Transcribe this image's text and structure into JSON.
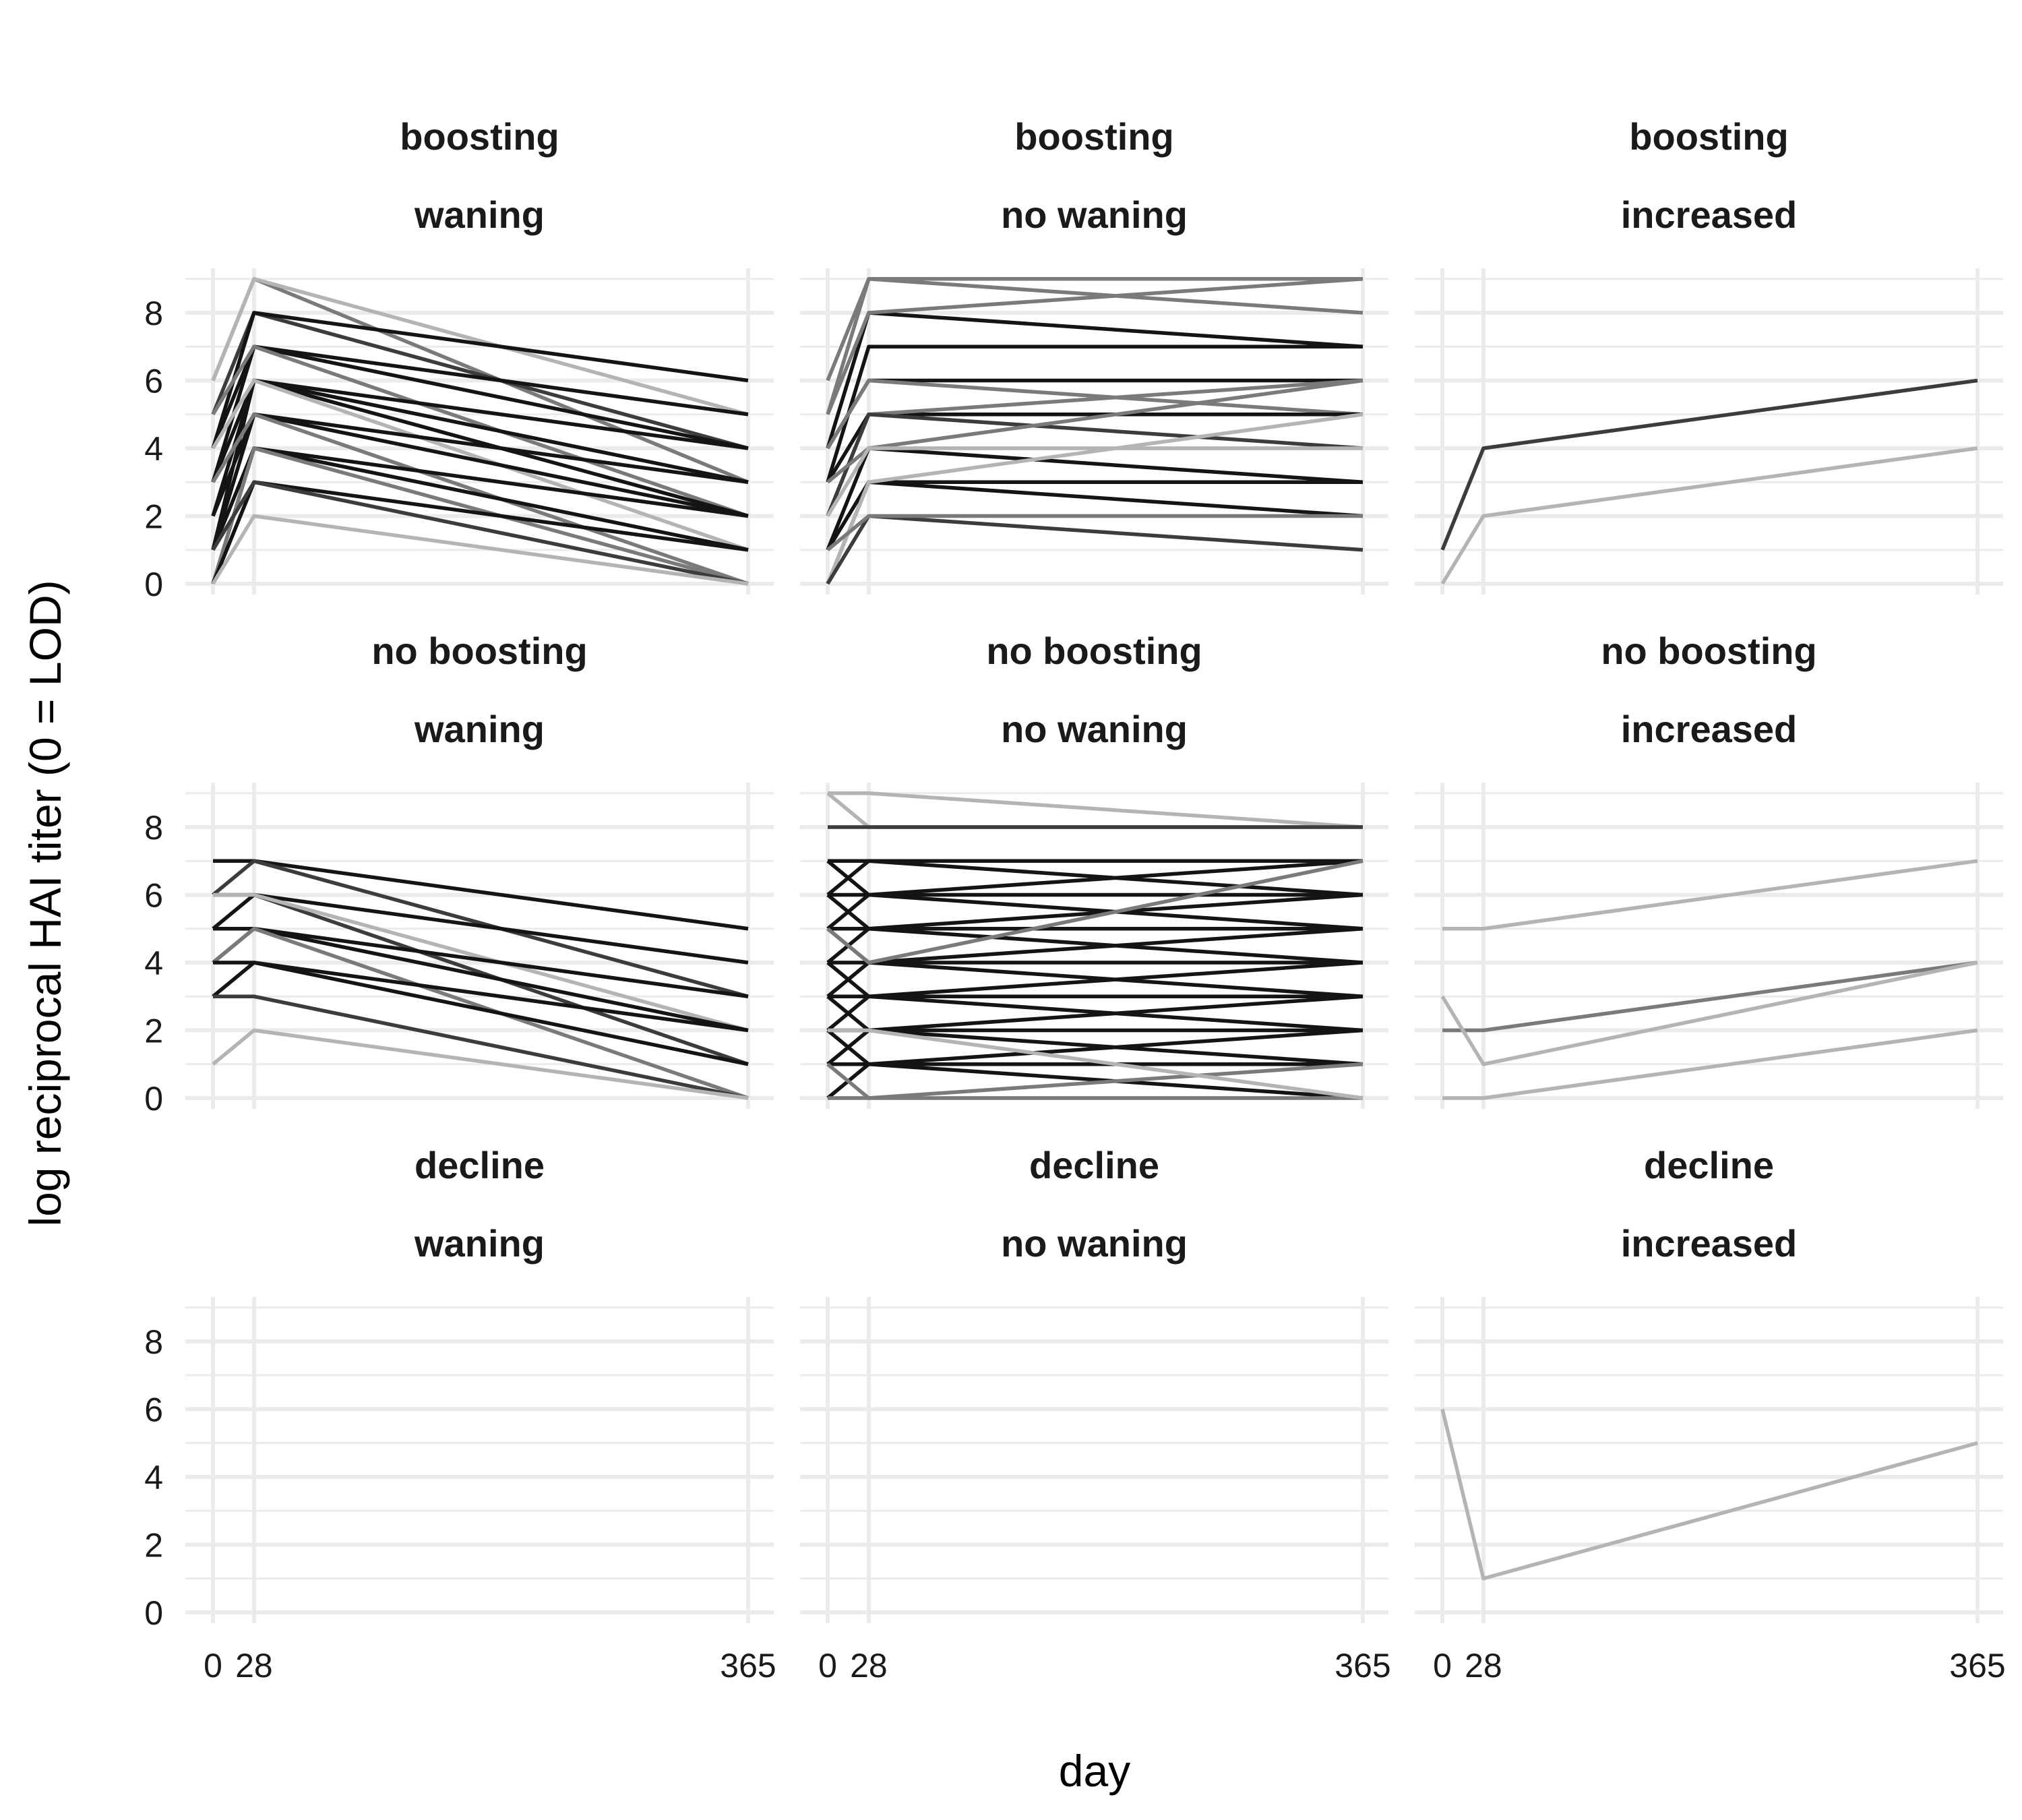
{
  "chart_data": {
    "type": "line",
    "xlabel": "day",
    "ylabel": "log reciprocal HAI titer (0 = LOD)",
    "x_ticks": [
      0,
      28,
      365
    ],
    "y_ticks": [
      0,
      2,
      4,
      6,
      8
    ],
    "xlim": [
      0,
      365
    ],
    "ylim": [
      0,
      9
    ],
    "grid": true,
    "colors": {
      "black": "#141414",
      "dark": "#3c3c3c",
      "mid": "#7a7a7a",
      "light": "#b4b4b4",
      "grid": "#ebebeb"
    },
    "panels": [
      {
        "row": 1,
        "col": 1,
        "boost": "boosting",
        "wane": "waning",
        "series": [
          {
            "shade": "mid",
            "values": [
              6,
              9,
              3
            ]
          },
          {
            "shade": "light",
            "values": [
              6,
              9,
              5
            ]
          },
          {
            "shade": "dark",
            "values": [
              5,
              8,
              4
            ]
          },
          {
            "shade": "black",
            "values": [
              4,
              8,
              6
            ]
          },
          {
            "shade": "black",
            "values": [
              4,
              7,
              5
            ]
          },
          {
            "shade": "black",
            "values": [
              3,
              7,
              4
            ]
          },
          {
            "shade": "mid",
            "values": [
              5,
              7,
              2
            ]
          },
          {
            "shade": "black",
            "values": [
              2,
              6,
              3
            ]
          },
          {
            "shade": "black",
            "values": [
              3,
              6,
              4
            ]
          },
          {
            "shade": "black",
            "values": [
              1,
              6,
              2
            ]
          },
          {
            "shade": "light",
            "values": [
              4,
              6,
              1
            ]
          },
          {
            "shade": "black",
            "values": [
              2,
              5,
              3
            ]
          },
          {
            "shade": "black",
            "values": [
              1,
              5,
              2
            ]
          },
          {
            "shade": "mid",
            "values": [
              3,
              5,
              0
            ]
          },
          {
            "shade": "black",
            "values": [
              0,
              4,
              2
            ]
          },
          {
            "shade": "black",
            "values": [
              1,
              4,
              1
            ]
          },
          {
            "shade": "mid",
            "values": [
              0,
              4,
              0
            ]
          },
          {
            "shade": "black",
            "values": [
              0,
              3,
              1
            ]
          },
          {
            "shade": "dark",
            "values": [
              1,
              3,
              0
            ]
          },
          {
            "shade": "light",
            "values": [
              0,
              2,
              0
            ]
          }
        ]
      },
      {
        "row": 1,
        "col": 2,
        "boost": "boosting",
        "wane": "no waning",
        "series": [
          {
            "shade": "mid",
            "values": [
              6,
              9,
              9
            ]
          },
          {
            "shade": "mid",
            "values": [
              5,
              9,
              8
            ]
          },
          {
            "shade": "black",
            "values": [
              4,
              8,
              7
            ]
          },
          {
            "shade": "mid",
            "values": [
              5,
              8,
              9
            ]
          },
          {
            "shade": "black",
            "values": [
              3,
              7,
              7
            ]
          },
          {
            "shade": "black",
            "values": [
              4,
              6,
              6
            ]
          },
          {
            "shade": "mid",
            "values": [
              4,
              6,
              5
            ]
          },
          {
            "shade": "black",
            "values": [
              3,
              5,
              5
            ]
          },
          {
            "shade": "mid",
            "values": [
              2,
              5,
              6
            ]
          },
          {
            "shade": "dark",
            "values": [
              2,
              5,
              4
            ]
          },
          {
            "shade": "mid",
            "values": [
              3,
              4,
              6
            ]
          },
          {
            "shade": "black",
            "values": [
              1,
              4,
              3
            ]
          },
          {
            "shade": "light",
            "values": [
              2,
              4,
              4
            ]
          },
          {
            "shade": "black",
            "values": [
              0,
              3,
              3
            ]
          },
          {
            "shade": "black",
            "values": [
              1,
              3,
              2
            ]
          },
          {
            "shade": "light",
            "values": [
              0,
              3,
              5
            ]
          },
          {
            "shade": "dark",
            "values": [
              0,
              2,
              1
            ]
          },
          {
            "shade": "mid",
            "values": [
              1,
              2,
              2
            ]
          }
        ]
      },
      {
        "row": 1,
        "col": 3,
        "boost": "boosting",
        "wane": "increased",
        "series": [
          {
            "shade": "dark",
            "values": [
              1,
              4,
              6
            ]
          },
          {
            "shade": "light",
            "values": [
              0,
              2,
              4
            ]
          }
        ]
      },
      {
        "row": 2,
        "col": 1,
        "boost": "no boosting",
        "wane": "waning",
        "series": [
          {
            "shade": "black",
            "values": [
              7,
              7,
              5
            ]
          },
          {
            "shade": "dark",
            "values": [
              6,
              7,
              3
            ]
          },
          {
            "shade": "black",
            "values": [
              5,
              6,
              4
            ]
          },
          {
            "shade": "dark",
            "values": [
              6,
              6,
              1
            ]
          },
          {
            "shade": "light",
            "values": [
              6,
              6,
              2
            ]
          },
          {
            "shade": "black",
            "values": [
              4,
              5,
              3
            ]
          },
          {
            "shade": "black",
            "values": [
              5,
              5,
              2
            ]
          },
          {
            "shade": "mid",
            "values": [
              4,
              5,
              0
            ]
          },
          {
            "shade": "black",
            "values": [
              3,
              4,
              2
            ]
          },
          {
            "shade": "black",
            "values": [
              4,
              4,
              1
            ]
          },
          {
            "shade": "dark",
            "values": [
              3,
              3,
              0
            ]
          },
          {
            "shade": "light",
            "values": [
              1,
              2,
              0
            ]
          }
        ]
      },
      {
        "row": 2,
        "col": 2,
        "boost": "no boosting",
        "wane": "no waning",
        "series": [
          {
            "shade": "light",
            "values": [
              9,
              9,
              8
            ]
          },
          {
            "shade": "light",
            "values": [
              9,
              8,
              8
            ]
          },
          {
            "shade": "dark",
            "values": [
              8,
              8,
              8
            ]
          },
          {
            "shade": "black",
            "values": [
              7,
              7,
              7
            ]
          },
          {
            "shade": "black",
            "values": [
              6,
              7,
              6
            ]
          },
          {
            "shade": "black",
            "values": [
              7,
              6,
              7
            ]
          },
          {
            "shade": "black",
            "values": [
              6,
              6,
              5
            ]
          },
          {
            "shade": "black",
            "values": [
              5,
              6,
              6
            ]
          },
          {
            "shade": "black",
            "values": [
              5,
              5,
              5
            ]
          },
          {
            "shade": "black",
            "values": [
              6,
              5,
              4
            ]
          },
          {
            "shade": "black",
            "values": [
              4,
              5,
              6
            ]
          },
          {
            "shade": "black",
            "values": [
              4,
              4,
              4
            ]
          },
          {
            "shade": "black",
            "values": [
              5,
              4,
              3
            ]
          },
          {
            "shade": "black",
            "values": [
              3,
              4,
              5
            ]
          },
          {
            "shade": "black",
            "values": [
              3,
              3,
              3
            ]
          },
          {
            "shade": "black",
            "values": [
              4,
              3,
              2
            ]
          },
          {
            "shade": "black",
            "values": [
              2,
              3,
              4
            ]
          },
          {
            "shade": "black",
            "values": [
              2,
              2,
              2
            ]
          },
          {
            "shade": "black",
            "values": [
              3,
              2,
              1
            ]
          },
          {
            "shade": "black",
            "values": [
              1,
              2,
              3
            ]
          },
          {
            "shade": "black",
            "values": [
              1,
              1,
              1
            ]
          },
          {
            "shade": "black",
            "values": [
              2,
              1,
              0
            ]
          },
          {
            "shade": "black",
            "values": [
              0,
              1,
              2
            ]
          },
          {
            "shade": "mid",
            "values": [
              0,
              0,
              0
            ]
          },
          {
            "shade": "mid",
            "values": [
              1,
              0,
              1
            ]
          },
          {
            "shade": "light",
            "values": [
              2,
              2,
              0
            ]
          },
          {
            "shade": "mid",
            "values": [
              5,
              4,
              7
            ]
          }
        ]
      },
      {
        "row": 2,
        "col": 3,
        "boost": "no boosting",
        "wane": "increased",
        "series": [
          {
            "shade": "light",
            "values": [
              5,
              5,
              7
            ]
          },
          {
            "shade": "mid",
            "values": [
              2,
              2,
              4
            ]
          },
          {
            "shade": "light",
            "values": [
              3,
              1,
              4
            ]
          },
          {
            "shade": "light",
            "values": [
              0,
              0,
              2
            ]
          }
        ]
      },
      {
        "row": 3,
        "col": 1,
        "boost": "decline",
        "wane": "waning",
        "series": []
      },
      {
        "row": 3,
        "col": 2,
        "boost": "decline",
        "wane": "no waning",
        "series": []
      },
      {
        "row": 3,
        "col": 3,
        "boost": "decline",
        "wane": "increased",
        "series": [
          {
            "shade": "light",
            "values": [
              6,
              1,
              5
            ]
          }
        ]
      }
    ]
  }
}
